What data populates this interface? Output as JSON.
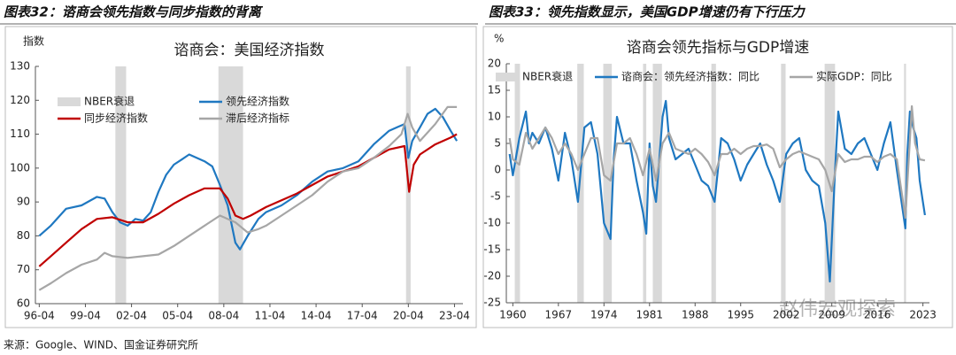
{
  "chart_data": [
    {
      "type": "line",
      "caption": "图表32：谘商会领先指数与同步指数的背离",
      "title": "谘商会：美国经济指数",
      "ylabel": "指数",
      "xlim": [
        1996,
        2023.8
      ],
      "ylim": [
        60,
        130
      ],
      "yticks": [
        60,
        70,
        80,
        90,
        100,
        110,
        120,
        130
      ],
      "xticks": [
        {
          "value": 1996.25,
          "label": "96-04"
        },
        {
          "value": 1999.25,
          "label": "99-04"
        },
        {
          "value": 2002.25,
          "label": "02-04"
        },
        {
          "value": 2005.25,
          "label": "05-04"
        },
        {
          "value": 2008.25,
          "label": "08-04"
        },
        {
          "value": 2011.25,
          "label": "11-04"
        },
        {
          "value": 2014.25,
          "label": "14-04"
        },
        {
          "value": 2017.25,
          "label": "17-04"
        },
        {
          "value": 2020.25,
          "label": "20-04"
        },
        {
          "value": 2023.25,
          "label": "23-04"
        }
      ],
      "grid": false,
      "legend": "upper-left",
      "recessions": {
        "name": "NBER衰退",
        "color": "#d9d9d9",
        "spans": [
          [
            2001.2,
            2001.9
          ],
          [
            2007.9,
            2009.5
          ],
          [
            2020.1,
            2020.4
          ]
        ]
      },
      "series": [
        {
          "name": "领先经济指数",
          "color": "#1f78c1",
          "x": [
            1996.25,
            1997,
            1998,
            1999,
            2000,
            2000.5,
            2001,
            2001.5,
            2002,
            2002.5,
            2003,
            2003.5,
            2004,
            2004.5,
            2005,
            2005.5,
            2006,
            2006.5,
            2007,
            2007.5,
            2008,
            2008.5,
            2009,
            2009.3,
            2009.8,
            2010.5,
            2011,
            2012,
            2013,
            2014,
            2015,
            2016,
            2017,
            2018,
            2019,
            2019.5,
            2020,
            2020.25,
            2020.5,
            2021,
            2021.5,
            2022,
            2022.5,
            2023,
            2023.4
          ],
          "values": [
            80,
            83,
            88,
            89,
            91.5,
            91,
            87,
            84,
            83,
            85,
            84.5,
            87,
            93,
            98,
            101,
            102.5,
            104,
            103,
            102,
            100.5,
            95,
            89,
            78,
            76,
            80,
            85,
            87,
            89,
            92,
            96,
            99,
            100,
            102,
            107,
            111,
            112,
            113,
            103,
            108,
            112,
            116,
            117.5,
            115,
            111,
            108
          ]
        },
        {
          "name": "同步经济指数",
          "color": "#c00000",
          "x": [
            1996.25,
            1997,
            1998,
            1999,
            2000,
            2001,
            2002,
            2003,
            2004,
            2005,
            2006,
            2007,
            2008,
            2008.5,
            2009,
            2009.5,
            2010,
            2011,
            2012,
            2013,
            2014,
            2015,
            2016,
            2017,
            2018,
            2019,
            2020,
            2020.3,
            2020.6,
            2021,
            2022,
            2023,
            2023.4
          ],
          "values": [
            71,
            74,
            78,
            82,
            85,
            85.5,
            84,
            84,
            86.5,
            89.5,
            92,
            94,
            94,
            91,
            86,
            85,
            86,
            88.5,
            90.5,
            92.5,
            95,
            97.5,
            99,
            100.5,
            103,
            105.5,
            106.5,
            93,
            101,
            104,
            107,
            109,
            110
          ]
        },
        {
          "name": "滞后经济指标",
          "color": "#a6a6a6",
          "x": [
            1996.25,
            1997,
            1998,
            1999,
            2000,
            2000.5,
            2001,
            2002,
            2003,
            2004,
            2005,
            2006,
            2007,
            2008,
            2009,
            2009.8,
            2010.5,
            2011,
            2012,
            2013,
            2014,
            2015,
            2016,
            2017,
            2018,
            2019,
            2019.8,
            2020.2,
            2020.5,
            2021,
            2022,
            2022.8,
            2023.4
          ],
          "values": [
            64,
            66,
            69,
            71.5,
            73,
            75,
            74,
            73.5,
            74,
            74.5,
            77,
            80,
            83,
            86,
            84,
            81,
            82,
            83,
            86,
            89,
            92,
            96,
            99,
            100,
            103,
            106.5,
            110,
            116,
            112,
            108,
            113,
            118,
            118
          ]
        }
      ]
    },
    {
      "type": "line",
      "caption": "图表33：领先指数显示，美国GDP增速仍有下行压力",
      "title": "谘商会领先指标与GDP增速",
      "ylabel": "%",
      "xlim": [
        1959,
        2024
      ],
      "ylim": [
        -25,
        20
      ],
      "yticks": [
        -25,
        -20,
        -15,
        -10,
        -5,
        0,
        5,
        10,
        15,
        20
      ],
      "xticks": [
        1960,
        1967,
        1974,
        1981,
        1988,
        1995,
        2002,
        2009,
        2016,
        2023
      ],
      "grid": false,
      "legend": "top",
      "recessions": {
        "name": "NBER衰退",
        "color": "#d9d9d9",
        "spans": [
          [
            1960.3,
            1961.1
          ],
          [
            1969.9,
            1970.9
          ],
          [
            1973.9,
            1975.2
          ],
          [
            1980,
            1980.5
          ],
          [
            1981.5,
            1982.9
          ],
          [
            1990.5,
            1991.2
          ],
          [
            2001.2,
            2001.9
          ],
          [
            2007.9,
            2009.5
          ],
          [
            2020.1,
            2020.4
          ]
        ]
      },
      "series": [
        {
          "name": "谘商会：领先经济指数：同比",
          "color": "#1f78c1",
          "x": [
            1959.5,
            1960,
            1961,
            1962,
            1962.5,
            1963,
            1964,
            1965,
            1966,
            1967,
            1968,
            1969,
            1970,
            1971,
            1972,
            1973,
            1974,
            1975,
            1975.5,
            1976,
            1977,
            1978,
            1979,
            1980,
            1980.5,
            1981,
            1981.5,
            1982,
            1983,
            1983.5,
            1984,
            1985,
            1986,
            1987,
            1988,
            1989,
            1990,
            1991,
            1992,
            1993,
            1994,
            1995,
            1996,
            1997,
            1998,
            1999,
            2000,
            2001,
            2002,
            2003,
            2004,
            2005,
            2006,
            2007,
            2008,
            2008.7,
            2009.5,
            2010,
            2011,
            2012,
            2013,
            2014,
            2015,
            2016,
            2017,
            2018,
            2019,
            2020.3,
            2020.6,
            2021,
            2021.5,
            2022,
            2022.5,
            2023,
            2023.3
          ],
          "values": [
            3,
            -1,
            6,
            11,
            5,
            7,
            5,
            8,
            4,
            -2,
            7,
            2,
            -6,
            8,
            9,
            3,
            -10,
            -13,
            2,
            10,
            5,
            5,
            -2,
            -8,
            -12,
            5,
            -3,
            -6,
            10,
            13,
            6,
            2,
            3,
            4,
            1,
            -2,
            -3,
            -6,
            6,
            5,
            2,
            -2,
            1,
            3,
            5,
            1,
            -2,
            -6,
            3,
            5,
            6,
            0,
            -2,
            -3,
            -10,
            -21,
            0,
            11,
            4,
            3,
            5,
            6,
            3,
            0,
            5,
            9,
            0,
            -11,
            3,
            11,
            8,
            6,
            -2,
            -6,
            -8.5
          ]
        },
        {
          "name": "实际GDP：同比",
          "color": "#a6a6a6",
          "x": [
            1959.5,
            1960,
            1961,
            1962,
            1963,
            1964,
            1965,
            1966,
            1967,
            1968,
            1969,
            1970,
            1971,
            1972,
            1973,
            1974,
            1975,
            1976,
            1977,
            1978,
            1979,
            1980,
            1981,
            1982,
            1983,
            1984,
            1985,
            1986,
            1987,
            1988,
            1989,
            1990,
            1991,
            1992,
            1993,
            1994,
            1995,
            1996,
            1997,
            1998,
            1999,
            2000,
            2001,
            2002,
            2003,
            2004,
            2005,
            2006,
            2007,
            2008,
            2009,
            2010,
            2011,
            2012,
            2013,
            2014,
            2015,
            2016,
            2017,
            2018,
            2019,
            2020.3,
            2021.3,
            2021.8,
            2022.5,
            2023.3
          ],
          "values": [
            6,
            2,
            1,
            7,
            4,
            6,
            8,
            6,
            3,
            5,
            3,
            0,
            3,
            6,
            6,
            -1,
            -2,
            5,
            5,
            6,
            3,
            -1,
            4,
            -2,
            5,
            7,
            4,
            3.5,
            3,
            4,
            3,
            1.5,
            -1,
            3,
            3,
            4,
            3,
            4,
            4.5,
            4.5,
            4.8,
            4,
            0.5,
            2,
            3,
            3.5,
            3,
            2.5,
            2,
            0,
            -4,
            3,
            1.5,
            2,
            2,
            2.5,
            2.5,
            1.5,
            2.5,
            3,
            2,
            -9,
            12,
            5,
            2,
            1.8
          ]
        }
      ]
    }
  ],
  "source": "来源：Google、WIND、国金证券研究所",
  "watermark": "赵伟宏观探索"
}
